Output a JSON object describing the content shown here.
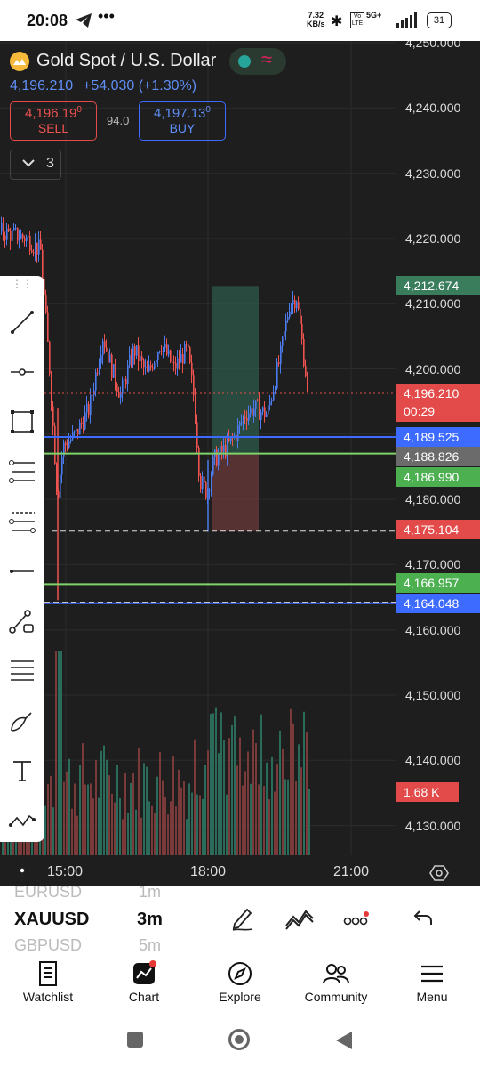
{
  "status": {
    "time": "20:08",
    "network_speed": "7.32",
    "network_unit": "KB/s",
    "battery": "31",
    "signal_label": "5G+"
  },
  "header": {
    "title": "Gold Spot / U.S. Dollar",
    "price": "4,196.210",
    "change": "+54.030 (+1.30%)",
    "sell_price": "4,196.19",
    "sell_sup": "0",
    "sell_label": "SELL",
    "spread": "94.0",
    "buy_price": "4,197.13",
    "buy_sup": "0",
    "buy_label": "BUY",
    "indicator_count": "3"
  },
  "chart": {
    "y_labels": [
      "4,250.000",
      "4,240.000",
      "4,230.000",
      "4,220.000",
      "4,210.000",
      "4,200.000",
      "4,190.000",
      "4,180.000",
      "4,170.000",
      "4,160.000",
      "4,150.000",
      "4,140.000",
      "4,130.000"
    ],
    "x_labels": [
      "15:00",
      "18:00",
      "21:00"
    ],
    "tags": {
      "t4212": "4,212.674",
      "cur_price": "4,196.210",
      "countdown": "00:29",
      "t4189": "4,189.525",
      "t4188": "4,188.826",
      "t4186": "4,186.990",
      "t4175": "4,175.104",
      "t4166": "4,166.957",
      "t4164": "4,164.048",
      "volume": "1.68 K"
    },
    "colors": {
      "up": "#4b7bec",
      "down": "#ef5350",
      "green_line": "#7fd36b",
      "blue_line": "#3d6bff"
    }
  },
  "toolbar": {
    "items": [
      "trend-line",
      "horizontal-ray",
      "rectangle",
      "fib-retracement",
      "fib-extension",
      "horizontal-line",
      "path",
      "parallel-lines",
      "brush",
      "text",
      "pattern",
      "vertical-line"
    ]
  },
  "timeframe_bar": {
    "symbol_prev": "EURUSD",
    "symbol": "XAUUSD",
    "symbol_next": "GBPUSD",
    "tf_prev": "1m",
    "tf": "3m",
    "tf_next": "5m"
  },
  "nav": {
    "items": [
      "Watchlist",
      "Chart",
      "Explore",
      "Community",
      "Menu"
    ]
  }
}
